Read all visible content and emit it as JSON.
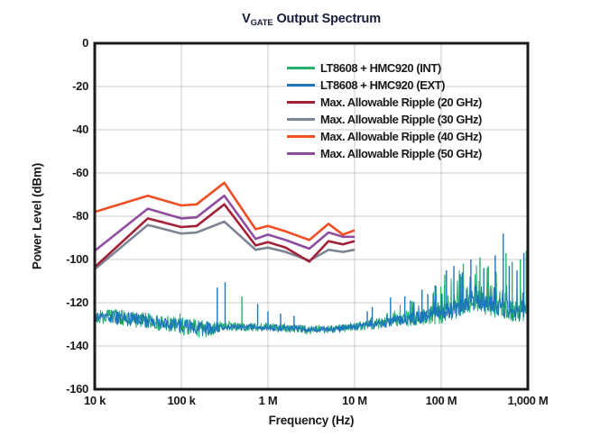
{
  "title": {
    "prefix": "V",
    "subscript": "GATE",
    "rest": "Output Spectrum",
    "color": "#161d3a"
  },
  "axes": {
    "x": {
      "label": "Frequency (Hz)",
      "scale": "log",
      "ticks": [
        "10 k",
        "100 k",
        "1 M",
        "10 M",
        "100 M",
        "1,000 M"
      ],
      "tick_values": [
        10000,
        100000,
        1000000,
        10000000,
        100000000,
        1000000000
      ]
    },
    "y": {
      "label": "Power Level (dBm)",
      "ticks": [
        "0",
        "-20",
        "-40",
        "-60",
        "-80",
        "-100",
        "-120",
        "-140",
        "-160"
      ],
      "tick_values": [
        0,
        -20,
        -40,
        -60,
        -80,
        -100,
        -120,
        -140,
        -160
      ]
    }
  },
  "legend": {
    "items": [
      {
        "label": "LT8608 + HMC920 (INT)",
        "color": "#29b06d"
      },
      {
        "label": "LT8608 + HMC920 (EXT)",
        "color": "#1d76bc"
      },
      {
        "label": "Max. Allowable Ripple (20 GHz)",
        "color": "#a32136"
      },
      {
        "label": "Max. Allowable Ripple (30 GHz)",
        "color": "#7d8493"
      },
      {
        "label": "Max. Allowable Ripple (40 GHz)",
        "color": "#f04e23"
      },
      {
        "label": "Max. Allowable Ripple (50 GHz)",
        "color": "#8e4d9e"
      }
    ]
  },
  "colors": {
    "border": "#1b1b1b",
    "grid": "#c8c8c8",
    "text": "#1a1a1a",
    "background": "#ffffff"
  },
  "chart_data": {
    "type": "line",
    "title": "VGATE Output Spectrum",
    "xlabel": "Frequency (Hz)",
    "ylabel": "Power Level (dBm)",
    "x_scale": "log",
    "xlim": [
      10000,
      1000000000
    ],
    "ylim": [
      -160,
      0
    ],
    "grid": true,
    "legend_position": "top-right-inside",
    "series": [
      {
        "id": "ripple-30",
        "name": "Max. Allowable Ripple (30 GHz)",
        "color": "#7d8493",
        "width": 2.6,
        "points": [
          [
            10000,
            -104.5
          ],
          [
            41000,
            -84
          ],
          [
            100000,
            -88
          ],
          [
            150000,
            -87.5
          ],
          [
            313000,
            -82.5
          ],
          [
            720000,
            -95.5
          ],
          [
            1000000,
            -94.5
          ],
          [
            1600000,
            -96.5
          ],
          [
            3000000,
            -100.5
          ],
          [
            5000000,
            -95.5
          ],
          [
            7300000,
            -96.5
          ],
          [
            10000000,
            -95.5
          ]
        ]
      },
      {
        "id": "ripple-20",
        "name": "Max. Allowable Ripple (20 GHz)",
        "color": "#a32136",
        "width": 2.6,
        "points": [
          [
            10000,
            -103.5
          ],
          [
            41000,
            -81
          ],
          [
            100000,
            -85
          ],
          [
            150000,
            -84.5
          ],
          [
            313000,
            -74.5
          ],
          [
            720000,
            -93.5
          ],
          [
            1000000,
            -92
          ],
          [
            1600000,
            -94.5
          ],
          [
            3000000,
            -101
          ],
          [
            5000000,
            -91.5
          ],
          [
            7300000,
            -93
          ],
          [
            10000000,
            -91.5
          ]
        ]
      },
      {
        "id": "ripple-50",
        "name": "Max. Allowable Ripple (50 GHz)",
        "color": "#8e4d9e",
        "width": 2.6,
        "points": [
          [
            10000,
            -96
          ],
          [
            41000,
            -76.5
          ],
          [
            100000,
            -81
          ],
          [
            150000,
            -80.5
          ],
          [
            313000,
            -70.5
          ],
          [
            720000,
            -90.5
          ],
          [
            1000000,
            -88.5
          ],
          [
            1600000,
            -91
          ],
          [
            3000000,
            -95
          ],
          [
            5000000,
            -87.5
          ],
          [
            7300000,
            -89.5
          ],
          [
            10000000,
            -89.5
          ]
        ]
      },
      {
        "id": "ripple-40",
        "name": "Max. Allowable Ripple (40 GHz)",
        "color": "#f04e23",
        "width": 2.6,
        "points": [
          [
            10000,
            -78
          ],
          [
            41000,
            -70.5
          ],
          [
            100000,
            -75
          ],
          [
            150000,
            -74.5
          ],
          [
            313000,
            -64.5
          ],
          [
            720000,
            -86
          ],
          [
            1000000,
            -84.5
          ],
          [
            1600000,
            -87
          ],
          [
            3000000,
            -91
          ],
          [
            5000000,
            -83.5
          ],
          [
            7300000,
            -88.5
          ],
          [
            10000000,
            -86.5
          ]
        ]
      }
    ],
    "noise_floor": {
      "description": "Overlapping measured spectra, INT (green) behind EXT (blue)",
      "baseline": [
        [
          10000,
          -126.5
        ],
        [
          30000,
          -128
        ],
        [
          100000,
          -130.5
        ],
        [
          200000,
          -132.5
        ],
        [
          300000,
          -131
        ],
        [
          1000000,
          -131.5
        ],
        [
          3000000,
          -132.5
        ],
        [
          10000000,
          -131.5
        ],
        [
          15000000,
          -130
        ],
        [
          20000000,
          -129.5
        ],
        [
          30000000,
          -128.5
        ],
        [
          50000000,
          -127
        ],
        [
          100000000,
          -125
        ],
        [
          150000000,
          -122.5
        ],
        [
          250000000,
          -119
        ],
        [
          400000000,
          -121.5
        ],
        [
          600000000,
          -123.5
        ],
        [
          1000000000,
          -126
        ]
      ],
      "jitter": [
        [
          10000,
          3.2
        ],
        [
          200000,
          3.4
        ],
        [
          300000,
          1.6
        ],
        [
          10000000,
          1.6
        ],
        [
          20000000,
          2.2
        ],
        [
          50000000,
          3
        ],
        [
          100000000,
          4
        ],
        [
          1000000000,
          4.5
        ]
      ],
      "burst": [
        [
          10000,
          1.5
        ],
        [
          200000,
          1.5
        ],
        [
          300000,
          0.8
        ],
        [
          10000000,
          0.8
        ],
        [
          20000000,
          3
        ],
        [
          50000000,
          8
        ],
        [
          100000000,
          13
        ],
        [
          250000000,
          16
        ],
        [
          500000000,
          14
        ],
        [
          1000000000,
          12
        ]
      ],
      "traces": [
        {
          "id": "int",
          "name": "LT8608 + HMC920 (INT)",
          "color": "#29b06d",
          "seed": 7,
          "jitter_scale": 1.25
        },
        {
          "id": "ext",
          "name": "LT8608 + HMC920 (EXT)",
          "color": "#1d76bc",
          "seed": 3,
          "jitter_scale": 1.0
        }
      ],
      "spikes_green": [
        [
          500000,
          -117
        ],
        [
          110000000,
          -107
        ],
        [
          180000000,
          -102
        ],
        [
          280000000,
          -99
        ],
        [
          350000000,
          -103
        ],
        [
          560000000,
          -97
        ],
        [
          660000000,
          -101
        ],
        [
          820000000,
          -100
        ],
        [
          960000000,
          -96
        ]
      ],
      "spikes_blue": [
        [
          260000,
          -113
        ],
        [
          320000,
          -110.5
        ],
        [
          760000,
          -120.5
        ],
        [
          1000000,
          -124
        ],
        [
          1400000,
          -125
        ],
        [
          2000000,
          -126
        ],
        [
          14000000,
          -124
        ],
        [
          16000000,
          -122
        ],
        [
          26000000,
          -117.5
        ],
        [
          38000000,
          -117
        ],
        [
          44000000,
          -119
        ],
        [
          60000000,
          -114
        ],
        [
          70000000,
          -116
        ],
        [
          85000000,
          -112
        ],
        [
          115000000,
          -105
        ],
        [
          140000000,
          -103
        ],
        [
          175000000,
          -106
        ],
        [
          220000000,
          -100
        ],
        [
          310000000,
          -104
        ],
        [
          420000000,
          -98
        ],
        [
          520000000,
          -88
        ],
        [
          610000000,
          -103
        ],
        [
          750000000,
          -105
        ],
        [
          900000000,
          -97
        ]
      ]
    }
  }
}
